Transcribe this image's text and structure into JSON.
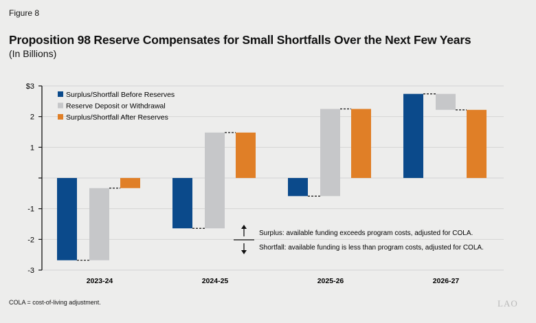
{
  "figure_label": "Figure 8",
  "footnote": "COLA = cost-of-living adjustment.",
  "logo_text": "LAO",
  "chart_data": {
    "type": "bar",
    "subtype": "waterfall",
    "title": "Proposition 98 Reserve Compensates for Small Shortfalls Over the Next Few Years",
    "subtitle": "(In Billions)",
    "categories": [
      "2023-24",
      "2024-25",
      "2025-26",
      "2026-27"
    ],
    "series": [
      {
        "name": "Surplus/Shortfall Before Reserves",
        "color": "#0b4a8b",
        "values": [
          -2.68,
          -1.64,
          -0.59,
          2.74
        ]
      },
      {
        "name": "Reserve Deposit or Withdrawal",
        "color": "#c6c7c9",
        "values": [
          2.35,
          3.12,
          2.84,
          -0.52
        ]
      },
      {
        "name": "Surplus/Shortfall After Reserves",
        "color": "#e07f27",
        "values": [
          -0.33,
          1.48,
          2.25,
          2.22
        ]
      }
    ],
    "ylim": [
      -3,
      3
    ],
    "yticks": [
      3,
      2,
      1,
      0,
      -1,
      -2,
      -3
    ],
    "ytick_labels": [
      "$3",
      "2",
      "1",
      "",
      "-1",
      "-2",
      "-3"
    ],
    "grid": true,
    "legend_placement": "top-left",
    "annotations": [
      "Surplus: available funding exceeds program costs, adjusted for COLA.",
      "Shortfall: available funding is less than program costs, adjusted for COLA."
    ]
  }
}
